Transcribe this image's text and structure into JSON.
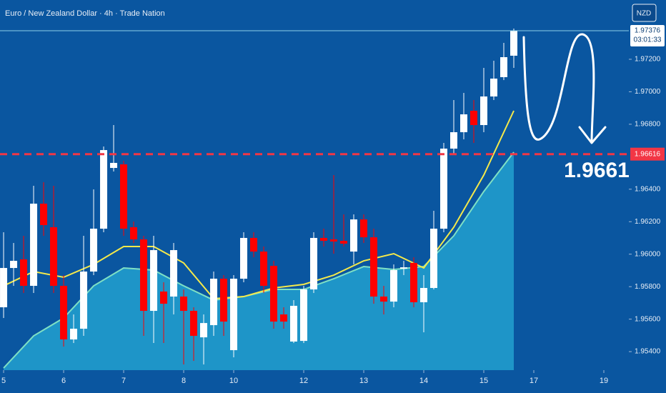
{
  "chart_data": {
    "type": "candlestick",
    "title": "Euro / New Zealand Dollar · 4h · Trade Nation",
    "currency": "NZD",
    "up_color": "#ffffff",
    "down_color": "#ff0000",
    "background": "#0a56a0",
    "x": [
      0,
      1,
      2,
      3,
      4,
      5,
      6,
      7,
      8,
      9,
      10,
      11,
      12,
      13,
      14,
      15,
      16,
      17,
      18,
      19,
      20,
      21,
      22,
      23,
      24,
      25,
      26,
      27,
      28,
      29,
      30,
      31,
      32,
      33,
      34,
      35,
      36,
      37,
      38,
      39,
      40,
      41,
      42,
      43,
      44,
      45,
      46,
      47,
      48,
      49,
      50,
      51
    ],
    "open": [
      1.95673,
      1.95915,
      1.95968,
      1.95805,
      1.96311,
      1.96166,
      1.95805,
      1.95475,
      1.95541,
      1.95893,
      1.96157,
      1.96531,
      1.96553,
      1.96166,
      1.96091,
      1.95651,
      1.9577,
      1.95739,
      1.95739,
      1.95651,
      1.95488,
      1.95563,
      1.95849,
      1.95409,
      1.95849,
      1.961,
      1.96016,
      1.95928,
      1.95629,
      1.95462,
      1.95466,
      1.95783,
      1.961,
      1.96091,
      1.96082,
      1.96016,
      1.96214,
      1.96104,
      1.95739,
      1.95708,
      1.95911,
      1.95946,
      1.95704,
      1.95792,
      1.96157,
      1.9665,
      1.96751,
      1.96883,
      1.96795,
      1.96971,
      1.9709,
      1.97222
    ],
    "high": [
      1.96135,
      1.96069,
      1.96113,
      1.96421,
      1.96443,
      1.96421,
      1.95871,
      1.95629,
      1.96113,
      1.96399,
      1.96663,
      1.96795,
      1.96575,
      1.96201,
      1.96113,
      1.96113,
      1.95827,
      1.96069,
      1.95783,
      1.95673,
      1.95629,
      1.95893,
      1.95871,
      1.95871,
      1.96135,
      1.96135,
      1.96047,
      1.95959,
      1.95673,
      1.95717,
      1.95805,
      1.96135,
      1.96157,
      1.96487,
      1.96245,
      1.96245,
      1.96245,
      1.96157,
      1.95805,
      1.95937,
      1.95959,
      1.95981,
      1.95871,
      1.96267,
      1.96685,
      1.96949,
      1.96993,
      1.96949,
      1.97147,
      1.97191,
      1.97301,
      1.97389
    ],
    "low": [
      1.95607,
      1.95805,
      1.95761,
      1.95761,
      1.96113,
      1.95761,
      1.95431,
      1.95453,
      1.95497,
      1.95871,
      1.96135,
      1.96509,
      1.96113,
      1.96069,
      1.95497,
      1.95453,
      1.95453,
      1.95629,
      1.95321,
      1.95343,
      1.95321,
      1.95497,
      1.95497,
      1.95365,
      1.95827,
      1.95981,
      1.95761,
      1.95541,
      1.95541,
      1.95453,
      1.95453,
      1.95761,
      1.96047,
      1.96003,
      1.96047,
      1.95937,
      1.96069,
      1.95695,
      1.95629,
      1.95673,
      1.95871,
      1.95673,
      1.95519,
      1.95783,
      1.96135,
      1.96619,
      1.96707,
      1.96685,
      1.96751,
      1.96949,
      1.97072,
      1.97147
    ],
    "close": [
      1.95915,
      1.95959,
      1.95805,
      1.96311,
      1.96179,
      1.95805,
      1.95475,
      1.95541,
      1.95893,
      1.96157,
      1.96641,
      1.96562,
      1.96157,
      1.96091,
      1.95651,
      1.96025,
      1.95695,
      1.96025,
      1.95651,
      1.95497,
      1.95576,
      1.95849,
      1.95585,
      1.95849,
      1.961,
      1.96016,
      1.95805,
      1.95585,
      1.95585,
      1.95682,
      1.95783,
      1.961,
      1.96082,
      1.96078,
      1.96065,
      1.96214,
      1.96104,
      1.95739,
      1.95708,
      1.95902,
      1.95919,
      1.95704,
      1.95792,
      1.96157,
      1.9665,
      1.96751,
      1.96861,
      1.96795,
      1.96971,
      1.97081,
      1.97213,
      1.97376
    ],
    "overlays": [
      {
        "style": "area",
        "color": "#1e95c8",
        "line_color": "#7fe0c4",
        "x": [
          0,
          3,
          6,
          9,
          12,
          15,
          18,
          21,
          24,
          27,
          30,
          33,
          36,
          39,
          42,
          45,
          48,
          51
        ],
        "values": [
          1.95299,
          1.95497,
          1.95607,
          1.95805,
          1.95915,
          1.95902,
          1.95805,
          1.95717,
          1.95739,
          1.95783,
          1.95783,
          1.95849,
          1.95924,
          1.95906,
          1.95924,
          1.96113,
          1.96386,
          1.96628
        ]
      },
      {
        "style": "line",
        "color": "#f5e94a",
        "x": [
          0,
          3,
          6,
          9,
          12,
          15,
          18,
          21,
          24,
          27,
          30,
          33,
          36,
          39,
          42,
          45,
          48,
          51
        ],
        "values": [
          1.95805,
          1.95893,
          1.95858,
          1.95937,
          1.96047,
          1.96047,
          1.95946,
          1.95726,
          1.95739,
          1.95792,
          1.95814,
          1.95871,
          1.95959,
          1.96003,
          1.95915,
          1.96166,
          1.96487,
          1.96883
        ]
      }
    ],
    "level": {
      "value": 1.96616,
      "label": "1.96616",
      "color": "#f23645"
    },
    "annotation": "1.9661",
    "current_price": {
      "value": 1.97376,
      "label": "1.97376"
    },
    "countdown": "03:01:33",
    "xlim": [
      -0.36,
      62.5
    ],
    "ylim": [
      1.95286,
      1.97565
    ],
    "xticks": [
      {
        "value": 0,
        "label": "5"
      },
      {
        "value": 6,
        "label": "6"
      },
      {
        "value": 12,
        "label": "7"
      },
      {
        "value": 18,
        "label": "8"
      },
      {
        "value": 23,
        "label": "10"
      },
      {
        "value": 30,
        "label": "12"
      },
      {
        "value": 36,
        "label": "13"
      },
      {
        "value": 42,
        "label": "14"
      },
      {
        "value": 48,
        "label": "15"
      },
      {
        "value": 53,
        "label": "17"
      },
      {
        "value": 60,
        "label": "19"
      }
    ],
    "yticks": [
      {
        "value": 1.954,
        "label": "1.95400"
      },
      {
        "value": 1.956,
        "label": "1.95600"
      },
      {
        "value": 1.958,
        "label": "1.95800"
      },
      {
        "value": 1.96,
        "label": "1.96000"
      },
      {
        "value": 1.962,
        "label": "1.96200"
      },
      {
        "value": 1.964,
        "label": "1.96400"
      },
      {
        "value": 1.968,
        "label": "1.96800"
      },
      {
        "value": 1.97,
        "label": "1.97000"
      },
      {
        "value": 1.972,
        "label": "1.97200"
      }
    ]
  }
}
